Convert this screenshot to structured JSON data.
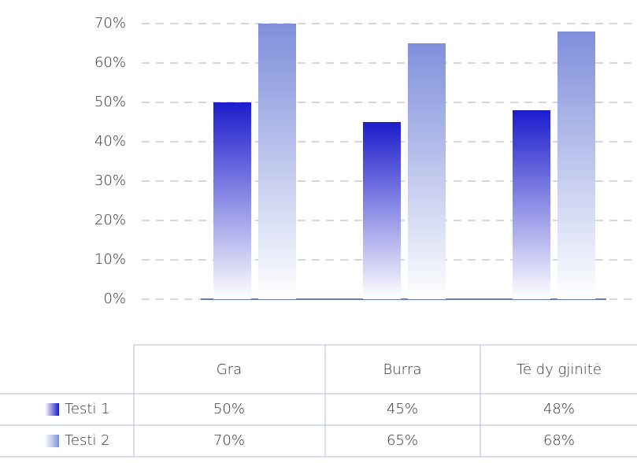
{
  "chart_data": {
    "type": "bar",
    "categories": [
      "Gra",
      "Burra",
      "Të dy gjinitë"
    ],
    "series": [
      {
        "name": "Testi 1",
        "color": "#1c1ccc",
        "values": [
          50,
          45,
          48
        ],
        "value_labels": [
          "50%",
          "45%",
          "48%"
        ]
      },
      {
        "name": "Testi 2",
        "color": "#7f8fdb",
        "values": [
          70,
          65,
          68
        ],
        "value_labels": [
          "70%",
          "65%",
          "68%"
        ]
      }
    ],
    "ylim": [
      0,
      70
    ],
    "yticks": [
      {
        "value": 0,
        "label": "0%"
      },
      {
        "value": 10,
        "label": "10%"
      },
      {
        "value": 20,
        "label": "20%"
      },
      {
        "value": 30,
        "label": "30%"
      },
      {
        "value": 40,
        "label": "40%"
      },
      {
        "value": 50,
        "label": "50%"
      },
      {
        "value": 60,
        "label": "60%"
      },
      {
        "value": 70,
        "label": "70%"
      }
    ],
    "grid": true
  }
}
